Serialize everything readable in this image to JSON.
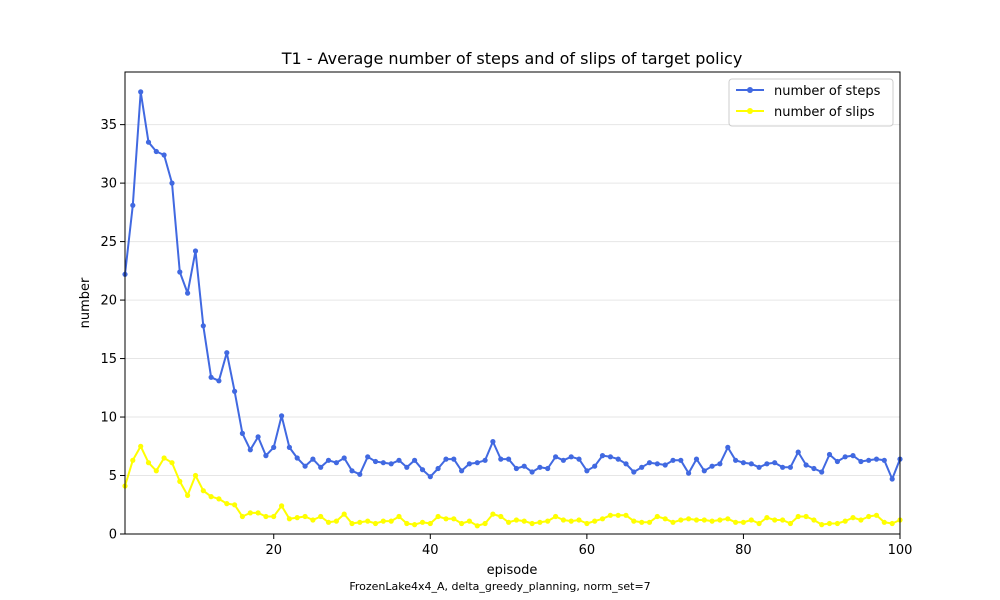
{
  "chart_data": {
    "type": "line",
    "title": "T1 - Average number of steps and of slips of target policy",
    "xlabel": "episode",
    "ylabel": "number",
    "caption": "FrozenLake4x4_A, delta_greedy_planning, norm_set=7",
    "xlim": [
      1,
      100
    ],
    "ylim": [
      0,
      39.5
    ],
    "xticks": [
      20,
      40,
      60,
      80,
      100
    ],
    "yticks": [
      0,
      5,
      10,
      15,
      20,
      25,
      30,
      35
    ],
    "grid": "horizontal",
    "legend_position": "top-right",
    "x": [
      1,
      2,
      3,
      4,
      5,
      6,
      7,
      8,
      9,
      10,
      11,
      12,
      13,
      14,
      15,
      16,
      17,
      18,
      19,
      20,
      21,
      22,
      23,
      24,
      25,
      26,
      27,
      28,
      29,
      30,
      31,
      32,
      33,
      34,
      35,
      36,
      37,
      38,
      39,
      40,
      41,
      42,
      43,
      44,
      45,
      46,
      47,
      48,
      49,
      50,
      51,
      52,
      53,
      54,
      55,
      56,
      57,
      58,
      59,
      60,
      61,
      62,
      63,
      64,
      65,
      66,
      67,
      68,
      69,
      70,
      71,
      72,
      73,
      74,
      75,
      76,
      77,
      78,
      79,
      80,
      81,
      82,
      83,
      84,
      85,
      86,
      87,
      88,
      89,
      90,
      91,
      92,
      93,
      94,
      95,
      96,
      97,
      98,
      99,
      100
    ],
    "series": [
      {
        "name": "number of steps",
        "color": "#4169E1",
        "values": [
          22.2,
          28.1,
          37.8,
          33.5,
          32.7,
          32.4,
          30.0,
          22.4,
          20.6,
          24.2,
          17.8,
          13.4,
          13.1,
          15.5,
          12.2,
          8.6,
          7.2,
          8.3,
          6.7,
          7.4,
          10.1,
          7.4,
          6.5,
          5.8,
          6.4,
          5.7,
          6.3,
          6.1,
          6.5,
          5.4,
          5.1,
          6.6,
          6.2,
          6.1,
          6.0,
          6.3,
          5.7,
          6.3,
          5.5,
          4.9,
          5.6,
          6.4,
          6.4,
          5.4,
          6.0,
          6.1,
          6.3,
          7.9,
          6.4,
          6.4,
          5.6,
          5.8,
          5.3,
          5.7,
          5.6,
          6.6,
          6.3,
          6.6,
          6.4,
          5.4,
          5.8,
          6.7,
          6.6,
          6.4,
          6.0,
          5.3,
          5.7,
          6.1,
          6.0,
          5.9,
          6.3,
          6.3,
          5.2,
          6.4,
          5.4,
          5.8,
          6.0,
          7.4,
          6.3,
          6.1,
          6.0,
          5.7,
          6.0,
          6.1,
          5.7,
          5.7,
          7.0,
          5.9,
          5.6,
          5.3,
          6.8,
          6.2,
          6.6,
          6.7,
          6.2,
          6.3,
          6.4,
          6.3,
          4.7,
          6.4
        ]
      },
      {
        "name": "number of slips",
        "color": "#FFFF00",
        "values": [
          4.1,
          6.3,
          7.5,
          6.1,
          5.4,
          6.5,
          6.1,
          4.5,
          3.3,
          5.0,
          3.7,
          3.2,
          3.0,
          2.6,
          2.5,
          1.5,
          1.8,
          1.8,
          1.5,
          1.5,
          2.4,
          1.3,
          1.4,
          1.5,
          1.2,
          1.5,
          1.0,
          1.1,
          1.7,
          0.9,
          1.0,
          1.1,
          0.9,
          1.1,
          1.1,
          1.5,
          0.9,
          0.8,
          1.0,
          0.9,
          1.5,
          1.3,
          1.3,
          0.9,
          1.1,
          0.7,
          0.9,
          1.7,
          1.5,
          1.0,
          1.2,
          1.1,
          0.9,
          1.0,
          1.1,
          1.5,
          1.2,
          1.1,
          1.2,
          0.9,
          1.1,
          1.3,
          1.6,
          1.6,
          1.6,
          1.1,
          1.0,
          1.0,
          1.5,
          1.3,
          1.0,
          1.2,
          1.3,
          1.2,
          1.2,
          1.1,
          1.2,
          1.3,
          1.0,
          1.0,
          1.2,
          0.9,
          1.4,
          1.2,
          1.2,
          0.9,
          1.5,
          1.5,
          1.2,
          0.8,
          0.9,
          0.9,
          1.1,
          1.4,
          1.2,
          1.5,
          1.6,
          1.0,
          0.9,
          1.2
        ]
      }
    ]
  }
}
